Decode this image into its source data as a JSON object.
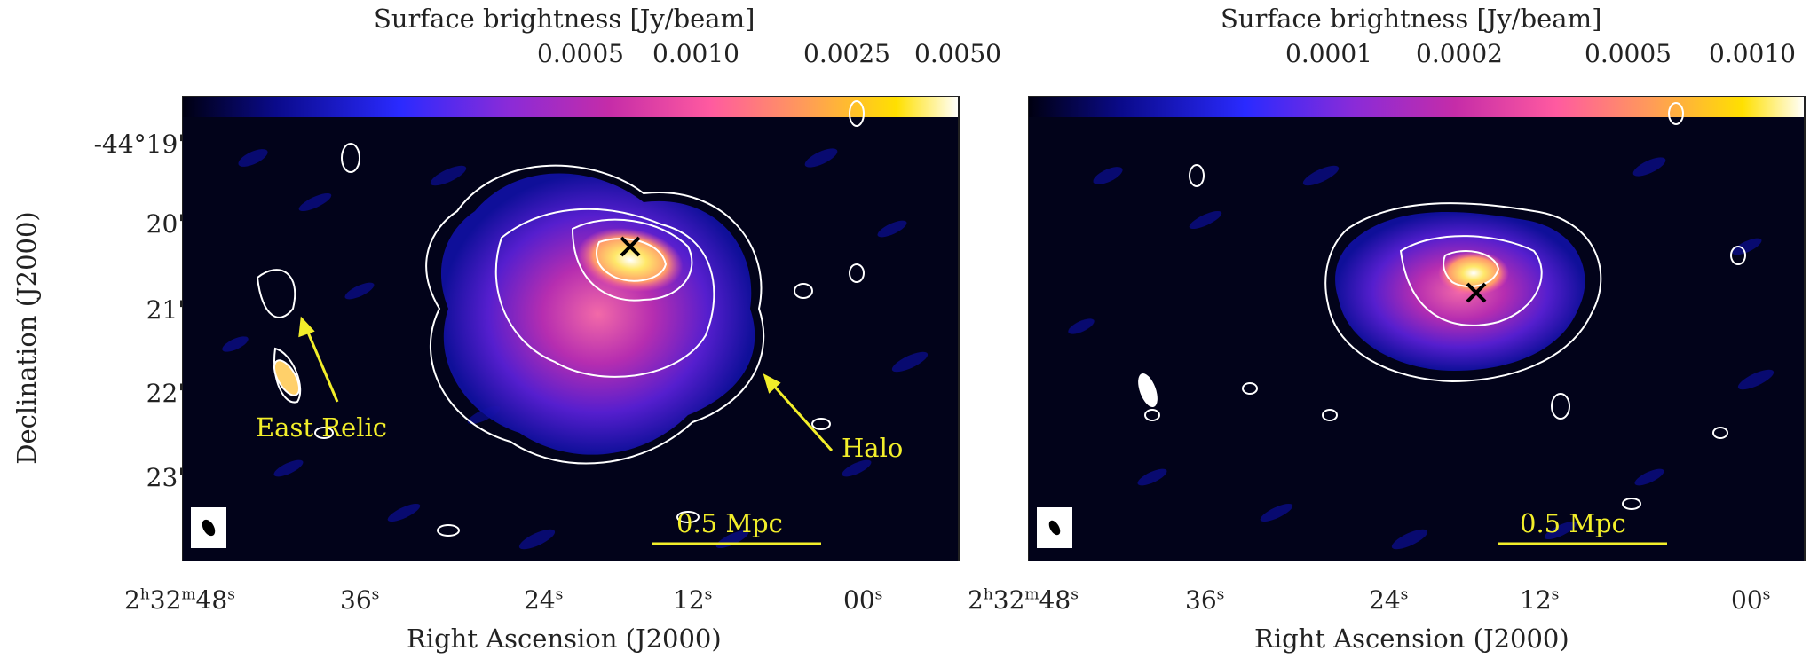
{
  "figure": {
    "y_axis_label": "Declination (J2000)",
    "x_axis_label": "Right Ascension (J2000)",
    "dec_ticks": [
      {
        "text": "-44°19'"
      },
      {
        "text": "20'"
      },
      {
        "text": "21'"
      },
      {
        "text": "22'"
      },
      {
        "text": "23'"
      }
    ],
    "ra_ticks": [
      {
        "h": "2",
        "m": "32",
        "s": "48"
      },
      {
        "s": "36"
      },
      {
        "s": "24"
      },
      {
        "s": "12"
      },
      {
        "s": "00"
      }
    ]
  },
  "panels": [
    {
      "colorbar": {
        "title": "Surface brightness [Jy/beam]",
        "ticks": [
          "0.0005",
          "0.0010",
          "0.0025",
          "0.0050"
        ],
        "colormap": [
          "#000010",
          "#0a0a8a",
          "#2a2aff",
          "#8a2bd8",
          "#c52ca8",
          "#ff5aa0",
          "#ff9a5a",
          "#ffe000",
          "#ffffff"
        ]
      },
      "annotations": {
        "east_relic": "East Relic",
        "halo": "Halo",
        "scale_bar": "0.5 Mpc",
        "annotation_color": "#f2ee2a"
      }
    },
    {
      "colorbar": {
        "title": "Surface brightness [Jy/beam]",
        "ticks": [
          "0.0001",
          "0.0002",
          "0.0005",
          "0.0010"
        ],
        "colormap": [
          "#000010",
          "#0a0a8a",
          "#2a2aff",
          "#8a2bd8",
          "#c52ca8",
          "#ff5aa0",
          "#ff9a5a",
          "#ffe000",
          "#ffffff"
        ]
      },
      "annotations": {
        "scale_bar": "0.5 Mpc",
        "annotation_color": "#f2ee2a"
      }
    }
  ]
}
